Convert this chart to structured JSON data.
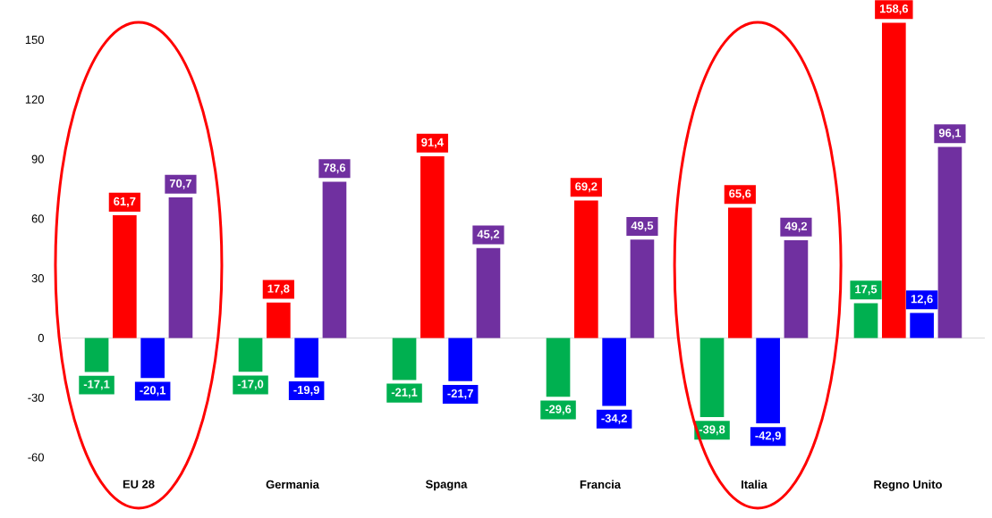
{
  "chart_data": {
    "type": "bar",
    "categories": [
      "EU 28",
      "Germania",
      "Spagna",
      "Francia",
      "Italia",
      "Regno Unito"
    ],
    "series": [
      {
        "color": "#00b050",
        "values": [
          -17.1,
          -17.0,
          -21.1,
          -29.6,
          -39.8,
          17.5
        ],
        "value_labels": [
          "-17,1",
          "-17,0",
          "-21,1",
          "-29,6",
          "-39,8",
          "17,5"
        ]
      },
      {
        "color": "#ff0000",
        "values": [
          61.7,
          17.8,
          91.4,
          69.2,
          65.6,
          158.6
        ],
        "value_labels": [
          "61,7",
          "17,8",
          "91,4",
          "69,2",
          "65,6",
          "158,6"
        ]
      },
      {
        "color": "#0000ff",
        "values": [
          -20.1,
          -19.9,
          -21.7,
          -34.2,
          -42.9,
          12.6
        ],
        "value_labels": [
          "-20,1",
          "-19,9",
          "-21,7",
          "-34,2",
          "-42,9",
          "12,6"
        ]
      },
      {
        "color": "#7030a0",
        "values": [
          70.7,
          78.6,
          45.2,
          49.5,
          49.2,
          96.1
        ],
        "value_labels": [
          "70,7",
          "78,6",
          "45,2",
          "49,5",
          "49,2",
          "96,1"
        ]
      }
    ],
    "ylim": [
      -60,
      170
    ],
    "yticks": [
      -60,
      -30,
      0,
      30,
      60,
      90,
      120,
      150
    ],
    "ref_lines": [
      {
        "axis": "y",
        "value": 0,
        "color": "#d9d9d9"
      }
    ],
    "grid": false
  }
}
